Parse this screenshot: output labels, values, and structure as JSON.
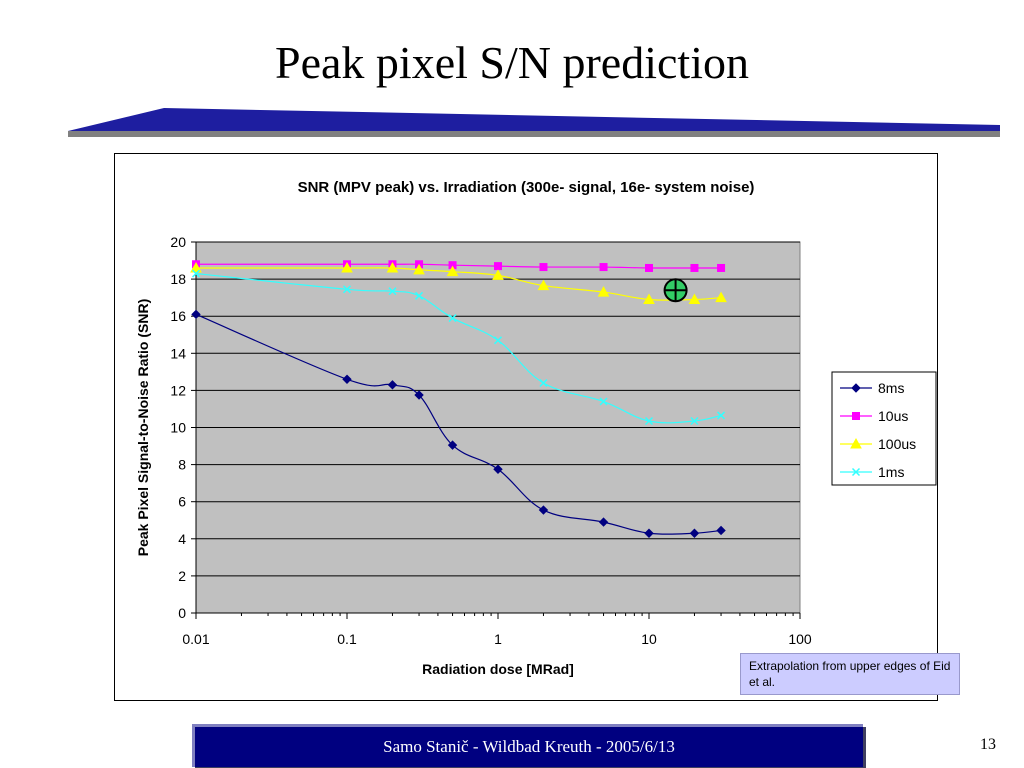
{
  "slide": {
    "title": "Peak pixel S/N prediction",
    "footer": "Samo Stanič - Wildbad Kreuth - 2005/6/13",
    "page_number": "13",
    "note": "Extrapolation from upper edges of Eid et al."
  },
  "colors": {
    "plot_background": "#c0c0c0",
    "title_bar": "#1e1ea0",
    "footer_bar": "#000080",
    "note_background": "#ccccff",
    "marker_circle": "#33cc66"
  },
  "chart_data": {
    "type": "line",
    "title": "SNR (MPV peak) vs. Irradiation (300e- signal, 16e- system noise)",
    "xlabel": "Radiation dose [MRad]",
    "ylabel": "Peak Pixel Signal-to-Noise Ratio (SNR)",
    "xscale": "log",
    "xlim": [
      0.01,
      100
    ],
    "ylim": [
      0,
      20
    ],
    "xticks": [
      "0.01",
      "0.1",
      "1",
      "10",
      "100"
    ],
    "yticks": [
      "0",
      "2",
      "4",
      "6",
      "8",
      "10",
      "12",
      "14",
      "16",
      "18",
      "20"
    ],
    "grid": "horizontal",
    "legend_position": "right",
    "series": [
      {
        "name": "8ms",
        "color": "#000080",
        "marker": "diamond",
        "points": [
          [
            0.01,
            16.1
          ],
          [
            0.1,
            12.6
          ],
          [
            0.2,
            12.3
          ],
          [
            0.3,
            11.75
          ],
          [
            0.5,
            9.05
          ],
          [
            1,
            7.75
          ],
          [
            2,
            5.55
          ],
          [
            5,
            4.9
          ],
          [
            10,
            4.3
          ],
          [
            20,
            4.3
          ],
          [
            30,
            4.45
          ]
        ]
      },
      {
        "name": "10us",
        "color": "#ff00ff",
        "marker": "square",
        "points": [
          [
            0.01,
            18.8
          ],
          [
            0.1,
            18.8
          ],
          [
            0.2,
            18.8
          ],
          [
            0.3,
            18.8
          ],
          [
            0.5,
            18.75
          ],
          [
            1,
            18.7
          ],
          [
            2,
            18.65
          ],
          [
            5,
            18.65
          ],
          [
            10,
            18.6
          ],
          [
            20,
            18.6
          ],
          [
            30,
            18.6
          ]
        ]
      },
      {
        "name": "100us",
        "color": "#ffff00",
        "marker": "triangle",
        "points": [
          [
            0.01,
            18.6
          ],
          [
            0.1,
            18.6
          ],
          [
            0.2,
            18.6
          ],
          [
            0.3,
            18.5
          ],
          [
            0.5,
            18.4
          ],
          [
            1,
            18.2
          ],
          [
            2,
            17.65
          ],
          [
            5,
            17.3
          ],
          [
            10,
            16.9
          ],
          [
            20,
            16.9
          ],
          [
            30,
            17.0
          ]
        ]
      },
      {
        "name": "1ms",
        "color": "#33ffff",
        "marker": "x",
        "points": [
          [
            0.01,
            18.3
          ],
          [
            0.1,
            17.45
          ],
          [
            0.2,
            17.35
          ],
          [
            0.3,
            17.1
          ],
          [
            0.5,
            15.9
          ],
          [
            1,
            14.7
          ],
          [
            2,
            12.4
          ],
          [
            5,
            11.4
          ],
          [
            10,
            10.35
          ],
          [
            20,
            10.35
          ],
          [
            30,
            10.65
          ]
        ]
      }
    ],
    "annotations": [
      {
        "type": "circle-cross-marker",
        "x": 15,
        "y": 17.4,
        "color": "#33cc66"
      }
    ]
  }
}
